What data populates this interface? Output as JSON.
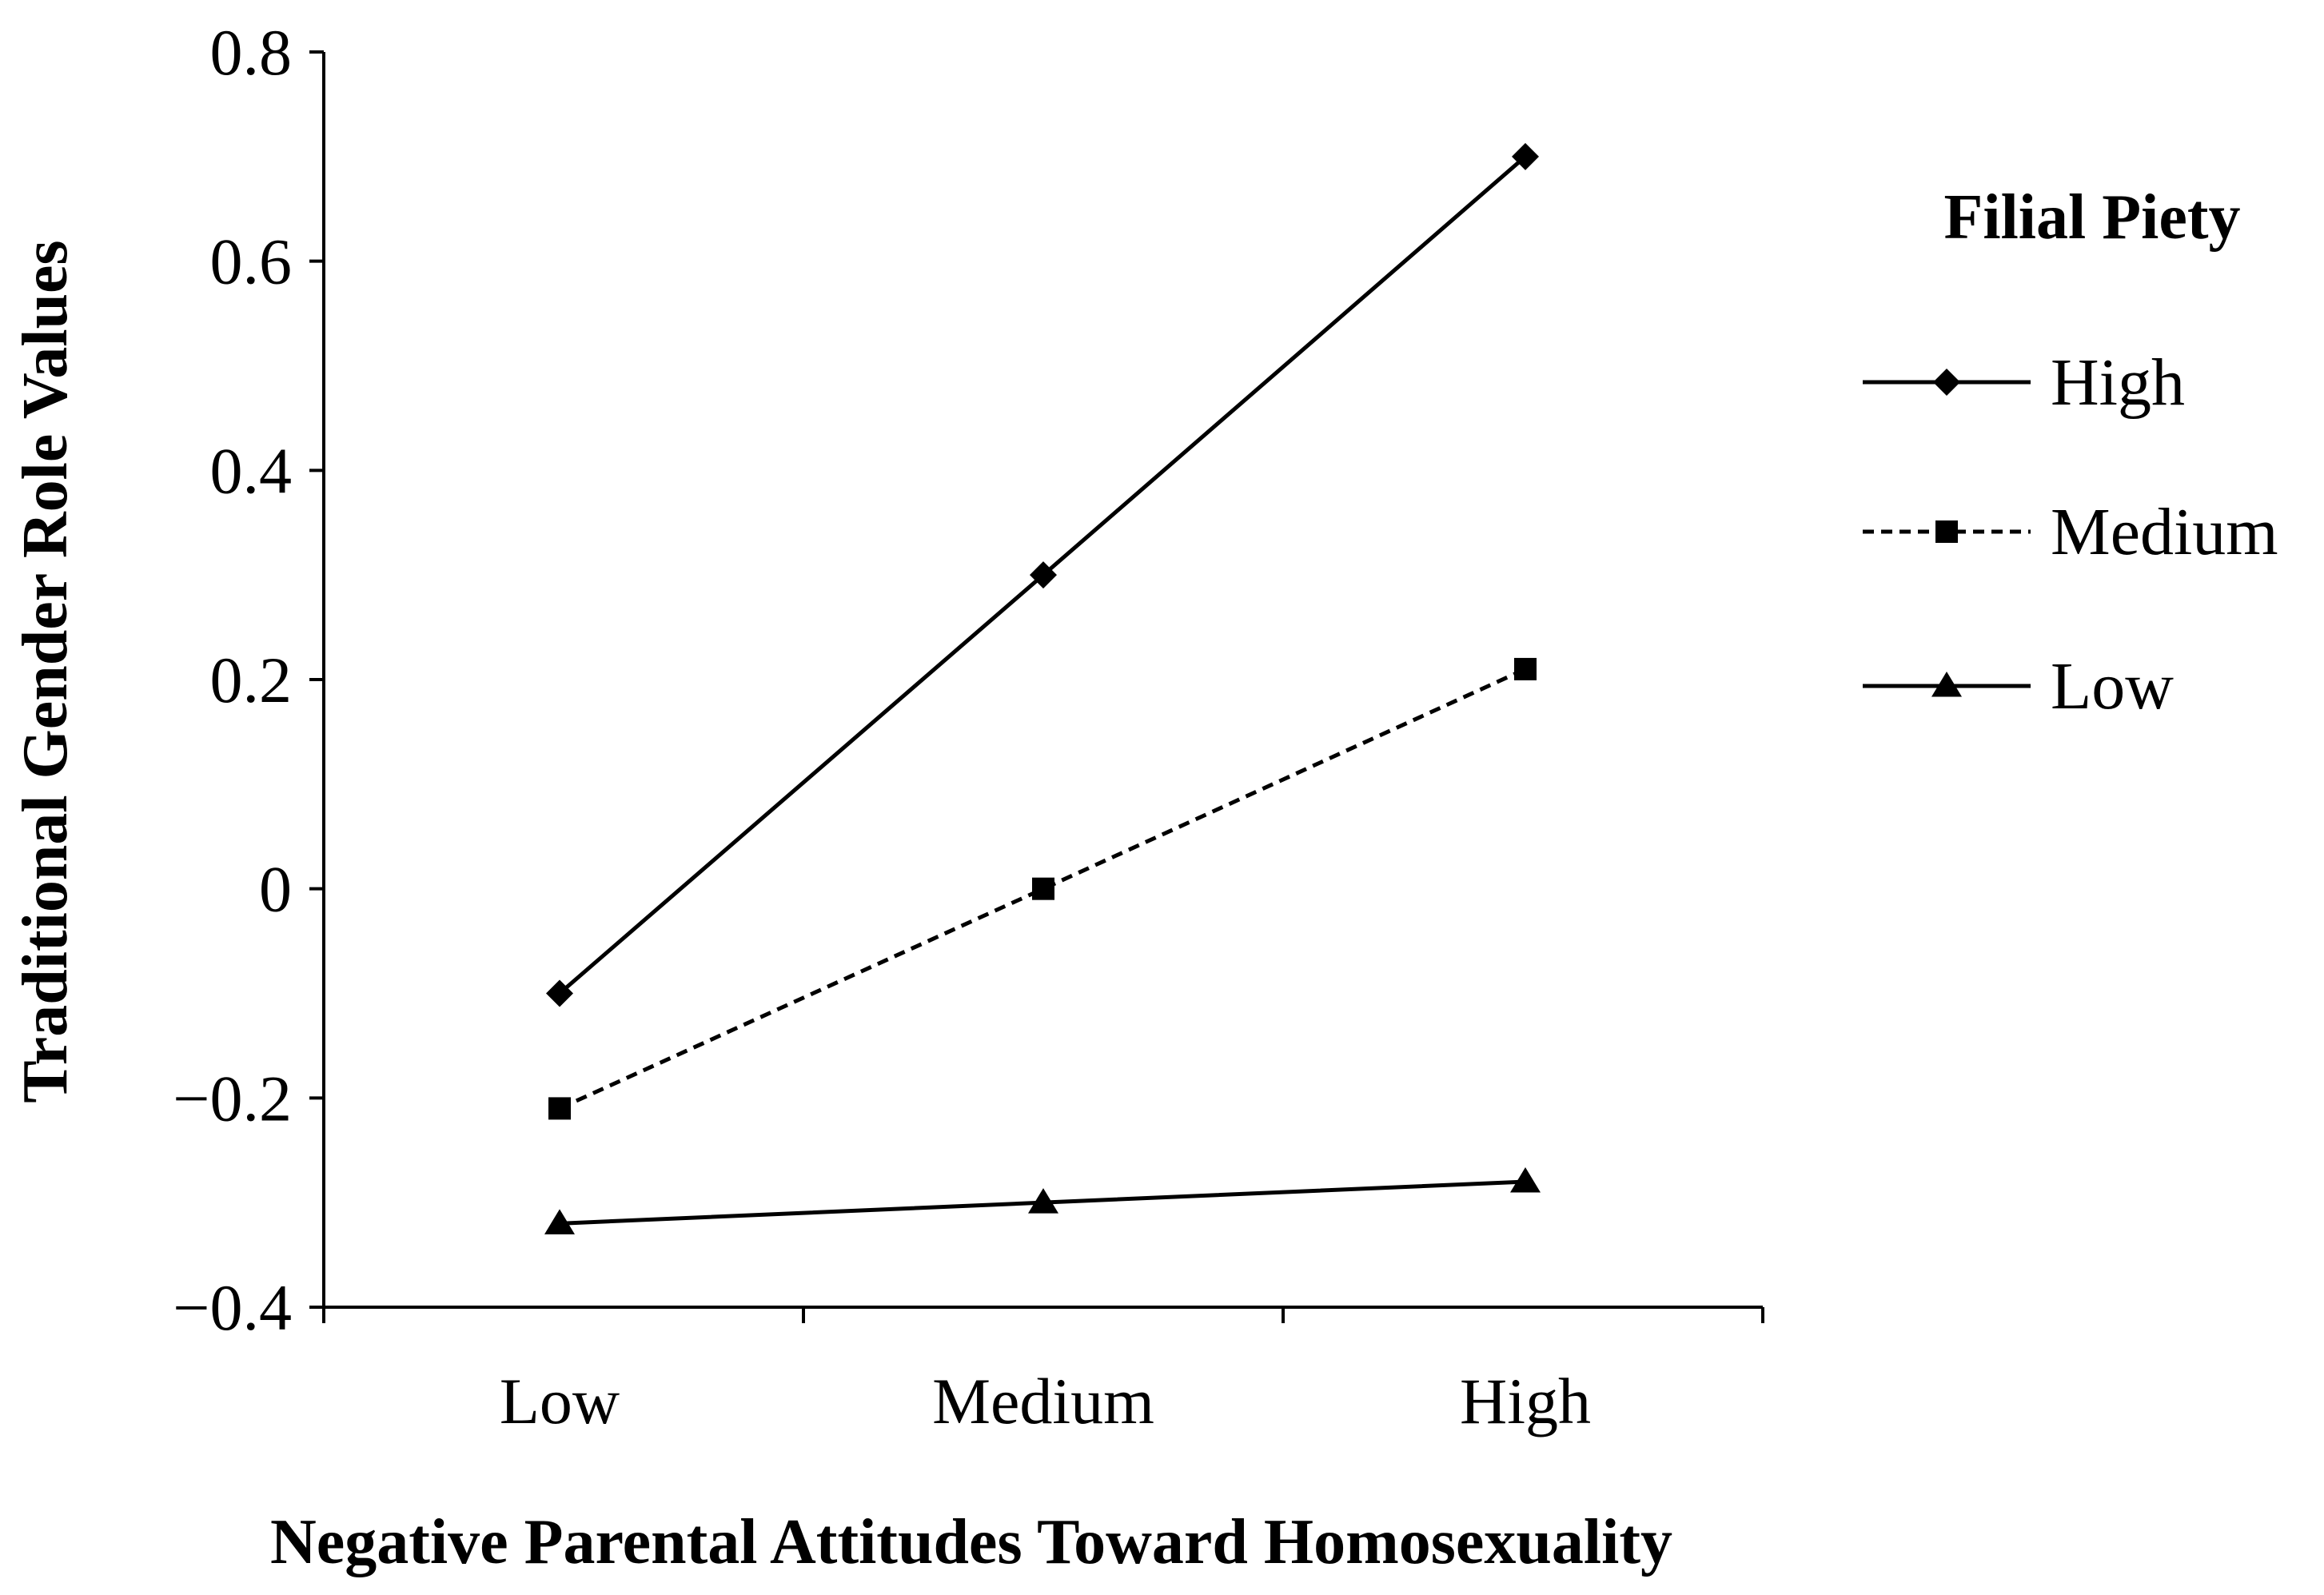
{
  "chart_data": {
    "type": "line",
    "title": "",
    "xlabel": "Negative Parental Attitudes Toward Homosexuality",
    "ylabel": "Traditional Gender Role Values",
    "categories": [
      "Low",
      "Medium",
      "High"
    ],
    "ylim": [
      -0.4,
      0.8
    ],
    "yticks": [
      -0.4,
      -0.2,
      0,
      0.2,
      0.4,
      0.6,
      0.8
    ],
    "ytick_labels": [
      "−0.4",
      "−0.2",
      "0",
      "0.2",
      "0.4",
      "0.6",
      "0.8"
    ],
    "grid": false,
    "legend": {
      "title": "Filial Piety",
      "position": "right"
    },
    "series": [
      {
        "name": "High",
        "values": [
          -0.1,
          0.3,
          0.7
        ],
        "marker": "diamond",
        "dash": "solid"
      },
      {
        "name": "Medium",
        "values": [
          -0.21,
          0.0,
          0.21
        ],
        "marker": "square",
        "dash": "dashed"
      },
      {
        "name": "Low",
        "values": [
          -0.32,
          -0.3,
          -0.28
        ],
        "marker": "triangle",
        "dash": "solid"
      }
    ],
    "colors": {
      "line": "#000000",
      "background": "#ffffff"
    }
  }
}
